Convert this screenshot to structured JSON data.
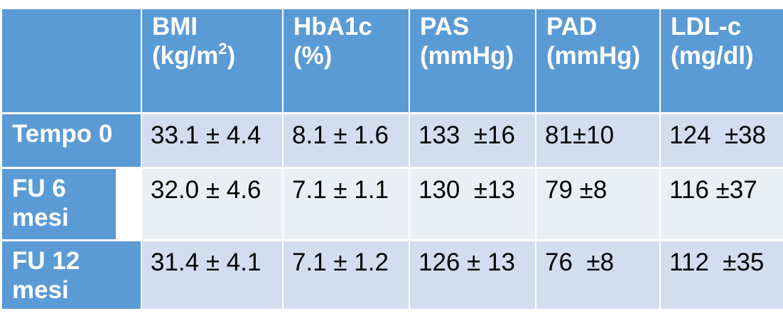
{
  "table": {
    "headers": [
      {
        "line1": "",
        "line2": ""
      },
      {
        "line1": "BMI",
        "line2_pre": "(kg/m",
        "line2_sup": "2",
        "line2_post": ")"
      },
      {
        "line1": "HbA1c",
        "line2": "(%)"
      },
      {
        "line1": "PAS",
        "line2": "(mmHg)"
      },
      {
        "line1": "PAD",
        "line2": "(mmHg)"
      },
      {
        "line1": "LDL-c",
        "line2": "(mg/dl)"
      }
    ],
    "rows": [
      {
        "label": "Tempo 0",
        "cells": [
          "33.1 ± 4.4",
          "8.1 ± 1.6",
          "133  ±16",
          "81±10",
          "124  ±38"
        ]
      },
      {
        "label": "FU  6 mesi",
        "cells": [
          "32.0 ± 4.6",
          "7.1 ± 1.1",
          "130  ±13",
          "79 ±8",
          "116 ±37"
        ]
      },
      {
        "label": "FU  12 mesi",
        "cells": [
          "31.4 ± 4.1",
          "7.1 ± 1.2",
          "126 ± 13",
          "76  ±8",
          "112  ±35"
        ]
      }
    ]
  },
  "colors": {
    "header_bg": "#5b9bd5",
    "row_odd_bg": "#d2deef",
    "row_even_bg": "#eaeff7",
    "header_text": "#ffffff"
  }
}
